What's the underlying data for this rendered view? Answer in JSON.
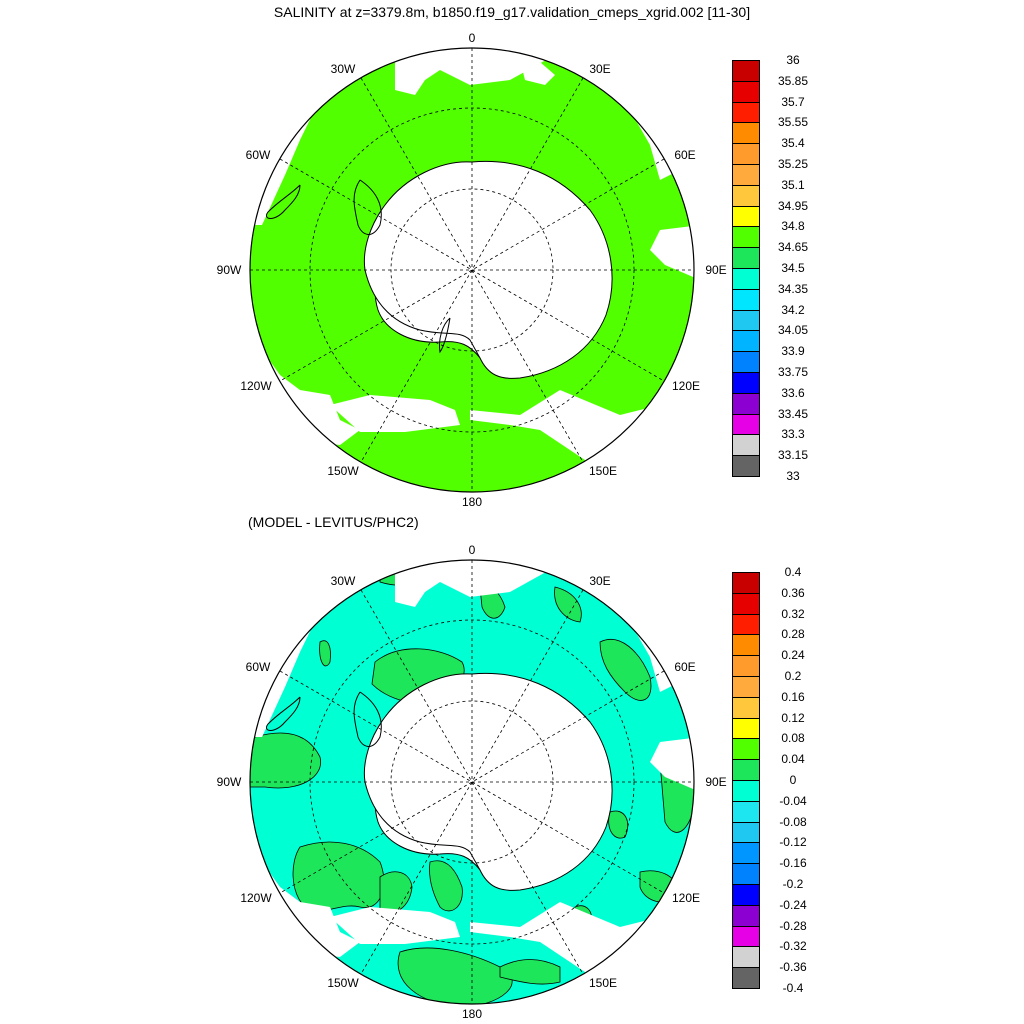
{
  "titles": {
    "main": "SALINITY at z=3379.8m, b1850.f19_g17.validation_cmeps_xgrid.002 [11-30]",
    "difference": "(MODEL - LEVITUS/PHC2)"
  },
  "longitude_labels": {
    "n0": "0",
    "e30": "30E",
    "e60": "60E",
    "e90": "90E",
    "e120": "120E",
    "e150": "150E",
    "s180": "180",
    "w150": "150W",
    "w120": "120W",
    "w90": "90W",
    "w60": "60W",
    "w30": "30W"
  },
  "colors": {
    "land": "#ffffff",
    "salinity_field": "#52ff00",
    "diff_negative_small": "#00ffd2",
    "diff_positive_small": "#1ee65a",
    "grid": "#000000"
  },
  "colorbars": {
    "salinity": {
      "labels": [
        "36",
        "35.85",
        "35.7",
        "35.55",
        "35.4",
        "35.25",
        "35.1",
        "34.95",
        "34.8",
        "34.65",
        "34.5",
        "34.35",
        "34.2",
        "34.05",
        "33.9",
        "33.75",
        "33.6",
        "33.45",
        "33.3",
        "33.15",
        "33"
      ],
      "colors": [
        "#c80000",
        "#e60000",
        "#ff1e00",
        "#ff8c00",
        "#ff9b2d",
        "#ffaa3c",
        "#ffc83c",
        "#ffff00",
        "#52ff00",
        "#1ee65a",
        "#00ffd2",
        "#00e6ff",
        "#1ec8f0",
        "#00b4ff",
        "#0082ff",
        "#0000ff",
        "#8c00d2",
        "#e600e6",
        "#d2d2d2",
        "#646464"
      ]
    },
    "difference": {
      "labels": [
        "0.4",
        "0.36",
        "0.32",
        "0.28",
        "0.24",
        "0.2",
        "0.16",
        "0.12",
        "0.08",
        "0.04",
        "0",
        "-0.04",
        "-0.08",
        "-0.12",
        "-0.16",
        "-0.2",
        "-0.24",
        "-0.28",
        "-0.32",
        "-0.36",
        "-0.4"
      ],
      "colors": [
        "#c80000",
        "#e60000",
        "#ff1e00",
        "#ff8c00",
        "#ff9b2d",
        "#ffaa3c",
        "#ffc83c",
        "#ffff00",
        "#52ff00",
        "#1ee65a",
        "#00ffd2",
        "#1ee6f0",
        "#1ec8f0",
        "#0096ff",
        "#0082ff",
        "#0000ff",
        "#8c00d2",
        "#e600e6",
        "#d2d2d2",
        "#646464"
      ]
    }
  }
}
